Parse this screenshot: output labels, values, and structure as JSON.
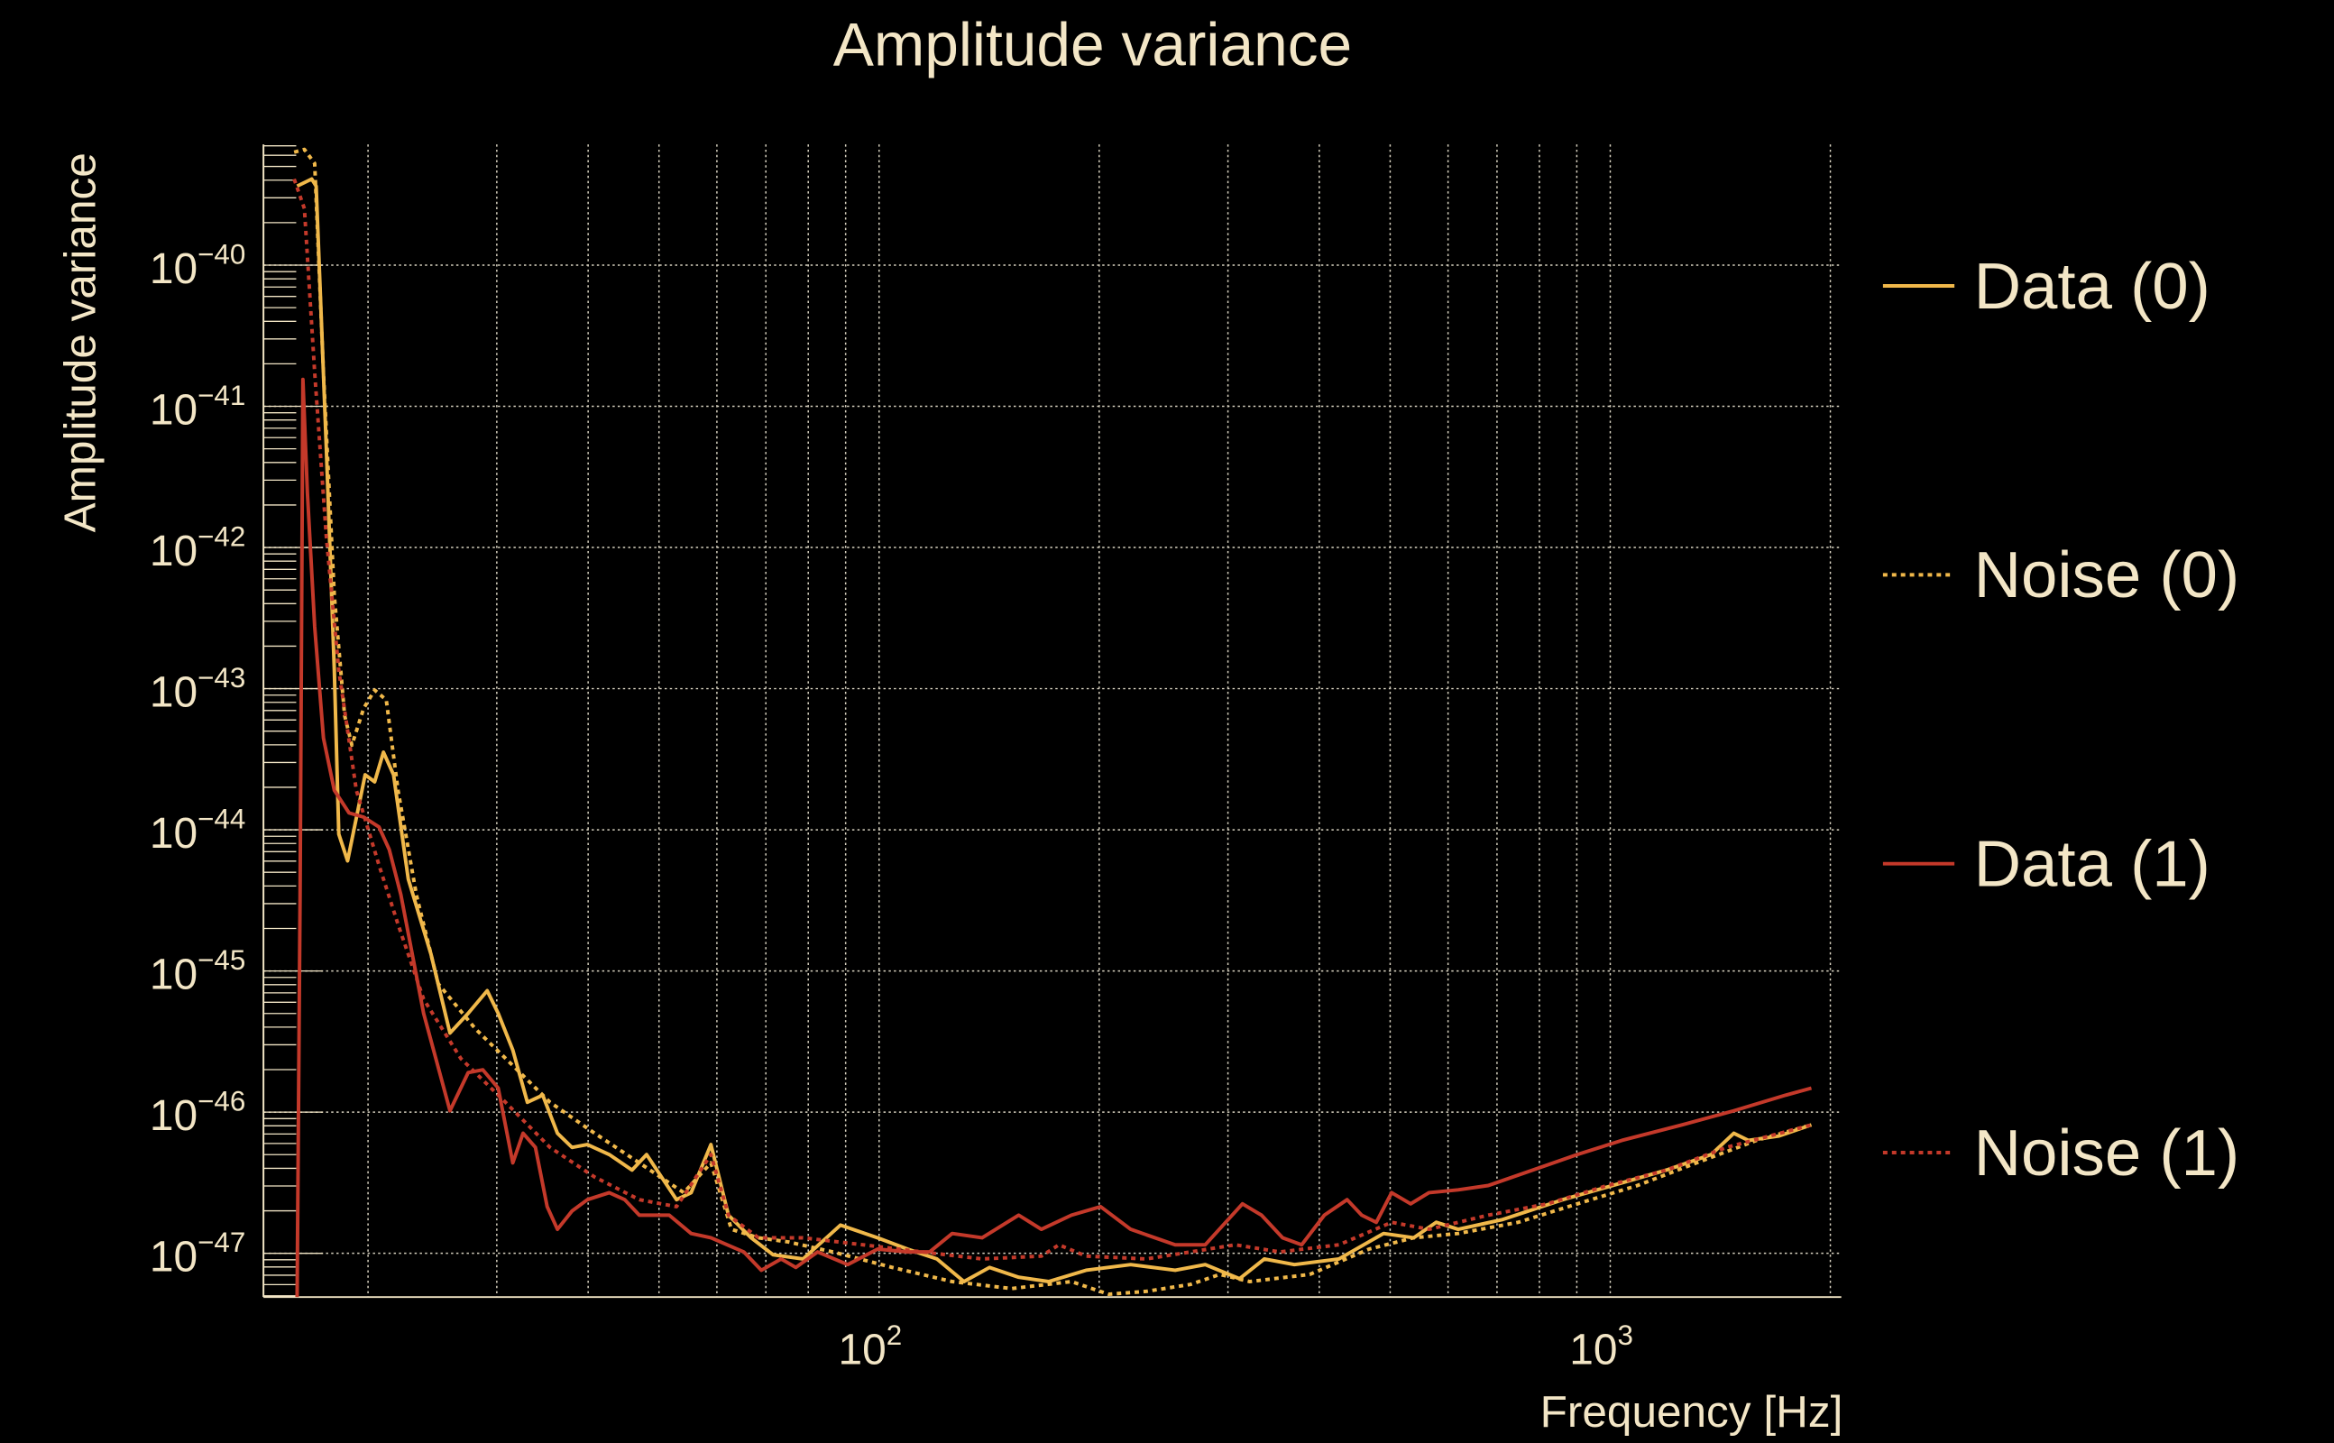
{
  "chart_data": {
    "type": "line",
    "title": "Amplitude variance",
    "xlabel": "Frequency [Hz]",
    "ylabel": "Amplitude variance",
    "xscale": "log",
    "yscale": "log",
    "x_log10_range": [
      1.158,
      3.316
    ],
    "y_log10_range": [
      -47.31,
      -39.145
    ],
    "grid": true,
    "legend_placement": "right-outside",
    "x_ticks": [
      {
        "base": "10",
        "exp": "2",
        "log10": 2
      },
      {
        "base": "10",
        "exp": "3",
        "log10": 3
      }
    ],
    "y_ticks": [
      {
        "base": "10",
        "exp": "−40",
        "log10": -40
      },
      {
        "base": "10",
        "exp": "−41",
        "log10": -41
      },
      {
        "base": "10",
        "exp": "−42",
        "log10": -42
      },
      {
        "base": "10",
        "exp": "−43",
        "log10": -43
      },
      {
        "base": "10",
        "exp": "−44",
        "log10": -44
      },
      {
        "base": "10",
        "exp": "−45",
        "log10": -45
      },
      {
        "base": "10",
        "exp": "−46",
        "log10": -46
      },
      {
        "base": "10",
        "exp": "−47",
        "log10": -47
      }
    ],
    "x_grid_hz": [
      20,
      30,
      40,
      50,
      60,
      70,
      80,
      90,
      100,
      200,
      300,
      400,
      500,
      600,
      700,
      800,
      900,
      1000,
      2000
    ],
    "point_format": "[log10(frequency Hz), log10(amplitude variance)]",
    "series": [
      {
        "name": "Data (0)",
        "color": "#f0b84a",
        "style": "solid",
        "points": [
          [
            1.204,
            -39.44
          ],
          [
            1.224,
            -39.39
          ],
          [
            1.23,
            -39.44
          ],
          [
            1.244,
            -41.29
          ],
          [
            1.255,
            -42.87
          ],
          [
            1.261,
            -44.03
          ],
          [
            1.273,
            -44.22
          ],
          [
            1.297,
            -43.61
          ],
          [
            1.31,
            -43.66
          ],
          [
            1.322,
            -43.45
          ],
          [
            1.336,
            -43.61
          ],
          [
            1.356,
            -44.35
          ],
          [
            1.387,
            -44.88
          ],
          [
            1.413,
            -45.44
          ],
          [
            1.438,
            -45.3
          ],
          [
            1.464,
            -45.14
          ],
          [
            1.479,
            -45.3
          ],
          [
            1.499,
            -45.56
          ],
          [
            1.519,
            -45.93
          ],
          [
            1.54,
            -45.88
          ],
          [
            1.56,
            -46.15
          ],
          [
            1.58,
            -46.25
          ],
          [
            1.601,
            -46.23
          ],
          [
            1.631,
            -46.3
          ],
          [
            1.662,
            -46.41
          ],
          [
            1.682,
            -46.3
          ],
          [
            1.723,
            -46.62
          ],
          [
            1.743,
            -46.57
          ],
          [
            1.77,
            -46.23
          ],
          [
            1.794,
            -46.73
          ],
          [
            1.825,
            -46.89
          ],
          [
            1.855,
            -47.01
          ],
          [
            1.896,
            -47.04
          ],
          [
            1.947,
            -46.8
          ],
          [
            1.998,
            -46.89
          ],
          [
            2.039,
            -46.97
          ],
          [
            2.079,
            -47.04
          ],
          [
            2.116,
            -47.2
          ],
          [
            2.151,
            -47.1
          ],
          [
            2.191,
            -47.17
          ],
          [
            2.232,
            -47.2
          ],
          [
            2.283,
            -47.12
          ],
          [
            2.344,
            -47.08
          ],
          [
            2.405,
            -47.12
          ],
          [
            2.446,
            -47.08
          ],
          [
            2.493,
            -47.18
          ],
          [
            2.527,
            -47.04
          ],
          [
            2.568,
            -47.08
          ],
          [
            2.629,
            -47.04
          ],
          [
            2.69,
            -46.86
          ],
          [
            2.731,
            -46.89
          ],
          [
            2.762,
            -46.78
          ],
          [
            2.792,
            -46.83
          ],
          [
            2.853,
            -46.76
          ],
          [
            2.935,
            -46.62
          ],
          [
            2.996,
            -46.53
          ],
          [
            3.077,
            -46.41
          ],
          [
            3.138,
            -46.3
          ],
          [
            3.169,
            -46.15
          ],
          [
            3.189,
            -46.2
          ],
          [
            3.23,
            -46.17
          ],
          [
            3.275,
            -46.09
          ]
        ]
      },
      {
        "name": "Noise (0)",
        "color": "#f0b84a",
        "style": "dotted",
        "points": [
          [
            1.2,
            -39.2
          ],
          [
            1.214,
            -39.18
          ],
          [
            1.228,
            -39.28
          ],
          [
            1.24,
            -40.76
          ],
          [
            1.255,
            -42.34
          ],
          [
            1.269,
            -43.19
          ],
          [
            1.279,
            -43.4
          ],
          [
            1.295,
            -43.14
          ],
          [
            1.31,
            -43.01
          ],
          [
            1.326,
            -43.08
          ],
          [
            1.342,
            -43.72
          ],
          [
            1.367,
            -44.46
          ],
          [
            1.397,
            -45.09
          ],
          [
            1.448,
            -45.41
          ],
          [
            1.499,
            -45.67
          ],
          [
            1.55,
            -45.93
          ],
          [
            1.611,
            -46.15
          ],
          [
            1.672,
            -46.36
          ],
          [
            1.733,
            -46.57
          ],
          [
            1.77,
            -46.36
          ],
          [
            1.798,
            -46.83
          ],
          [
            1.835,
            -46.89
          ],
          [
            1.876,
            -46.92
          ],
          [
            1.937,
            -46.99
          ],
          [
            2.018,
            -47.1
          ],
          [
            2.1,
            -47.2
          ],
          [
            2.181,
            -47.25
          ],
          [
            2.263,
            -47.2
          ],
          [
            2.314,
            -47.29
          ],
          [
            2.365,
            -47.27
          ],
          [
            2.426,
            -47.22
          ],
          [
            2.466,
            -47.15
          ],
          [
            2.507,
            -47.2
          ],
          [
            2.589,
            -47.15
          ],
          [
            2.67,
            -46.97
          ],
          [
            2.731,
            -46.89
          ],
          [
            2.792,
            -46.86
          ],
          [
            2.874,
            -46.78
          ],
          [
            2.955,
            -46.65
          ],
          [
            3.037,
            -46.52
          ],
          [
            3.118,
            -46.36
          ],
          [
            3.2,
            -46.2
          ],
          [
            3.275,
            -46.09
          ]
        ]
      },
      {
        "name": "Data (1)",
        "color": "#c4392a",
        "style": "solid",
        "points": [
          [
            1.204,
            -47.31
          ],
          [
            1.208,
            -44.46
          ],
          [
            1.212,
            -40.81
          ],
          [
            1.218,
            -41.61
          ],
          [
            1.228,
            -42.56
          ],
          [
            1.24,
            -43.35
          ],
          [
            1.255,
            -43.72
          ],
          [
            1.275,
            -43.88
          ],
          [
            1.295,
            -43.91
          ],
          [
            1.316,
            -43.98
          ],
          [
            1.33,
            -44.14
          ],
          [
            1.346,
            -44.46
          ],
          [
            1.377,
            -45.3
          ],
          [
            1.413,
            -45.99
          ],
          [
            1.438,
            -45.72
          ],
          [
            1.458,
            -45.7
          ],
          [
            1.479,
            -45.83
          ],
          [
            1.499,
            -46.36
          ],
          [
            1.513,
            -46.15
          ],
          [
            1.53,
            -46.25
          ],
          [
            1.546,
            -46.67
          ],
          [
            1.56,
            -46.83
          ],
          [
            1.58,
            -46.7
          ],
          [
            1.601,
            -46.62
          ],
          [
            1.631,
            -46.57
          ],
          [
            1.652,
            -46.62
          ],
          [
            1.672,
            -46.73
          ],
          [
            1.713,
            -46.73
          ],
          [
            1.743,
            -46.86
          ],
          [
            1.77,
            -46.89
          ],
          [
            1.815,
            -46.99
          ],
          [
            1.839,
            -47.12
          ],
          [
            1.866,
            -47.04
          ],
          [
            1.886,
            -47.1
          ],
          [
            1.916,
            -46.99
          ],
          [
            1.957,
            -47.08
          ],
          [
            1.998,
            -46.97
          ],
          [
            2.039,
            -46.99
          ],
          [
            2.069,
            -46.99
          ],
          [
            2.1,
            -46.86
          ],
          [
            2.141,
            -46.89
          ],
          [
            2.191,
            -46.73
          ],
          [
            2.222,
            -46.83
          ],
          [
            2.263,
            -46.73
          ],
          [
            2.303,
            -46.67
          ],
          [
            2.344,
            -46.83
          ],
          [
            2.405,
            -46.94
          ],
          [
            2.446,
            -46.94
          ],
          [
            2.497,
            -46.65
          ],
          [
            2.523,
            -46.73
          ],
          [
            2.552,
            -46.89
          ],
          [
            2.578,
            -46.94
          ],
          [
            2.609,
            -46.73
          ],
          [
            2.64,
            -46.62
          ],
          [
            2.66,
            -46.73
          ],
          [
            2.68,
            -46.78
          ],
          [
            2.701,
            -46.57
          ],
          [
            2.727,
            -46.65
          ],
          [
            2.752,
            -46.57
          ],
          [
            2.792,
            -46.55
          ],
          [
            2.833,
            -46.52
          ],
          [
            2.894,
            -46.41
          ],
          [
            2.955,
            -46.3
          ],
          [
            3.016,
            -46.2
          ],
          [
            3.098,
            -46.09
          ],
          [
            3.169,
            -45.99
          ],
          [
            3.24,
            -45.88
          ],
          [
            3.275,
            -45.83
          ]
        ]
      },
      {
        "name": "Noise (1)",
        "color": "#c4392a",
        "style": "dotted",
        "points": [
          [
            1.2,
            -39.39
          ],
          [
            1.214,
            -39.6
          ],
          [
            1.228,
            -40.76
          ],
          [
            1.244,
            -41.92
          ],
          [
            1.261,
            -42.87
          ],
          [
            1.285,
            -43.72
          ],
          [
            1.316,
            -44.25
          ],
          [
            1.342,
            -44.67
          ],
          [
            1.377,
            -45.2
          ],
          [
            1.428,
            -45.62
          ],
          [
            1.489,
            -45.93
          ],
          [
            1.55,
            -46.25
          ],
          [
            1.611,
            -46.46
          ],
          [
            1.672,
            -46.62
          ],
          [
            1.723,
            -46.67
          ],
          [
            1.77,
            -46.3
          ],
          [
            1.794,
            -46.73
          ],
          [
            1.835,
            -46.89
          ],
          [
            1.896,
            -46.89
          ],
          [
            1.978,
            -46.94
          ],
          [
            2.059,
            -46.99
          ],
          [
            2.141,
            -47.04
          ],
          [
            2.222,
            -47.02
          ],
          [
            2.246,
            -46.94
          ],
          [
            2.283,
            -47.02
          ],
          [
            2.365,
            -47.04
          ],
          [
            2.426,
            -46.99
          ],
          [
            2.487,
            -46.94
          ],
          [
            2.548,
            -46.99
          ],
          [
            2.629,
            -46.94
          ],
          [
            2.701,
            -46.78
          ],
          [
            2.752,
            -46.83
          ],
          [
            2.833,
            -46.73
          ],
          [
            2.914,
            -46.65
          ],
          [
            2.996,
            -46.52
          ],
          [
            3.077,
            -46.41
          ],
          [
            3.159,
            -46.25
          ],
          [
            3.275,
            -46.09
          ]
        ]
      }
    ]
  }
}
